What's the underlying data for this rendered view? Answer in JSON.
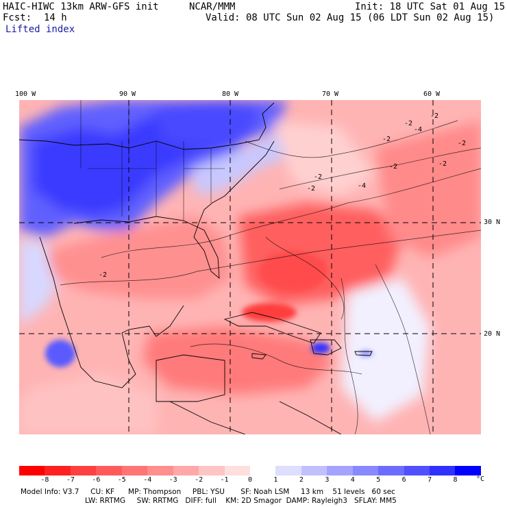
{
  "header": {
    "model": "HAIC-HIWC 13km ARW-GFS init",
    "org": "NCAR/MMM",
    "init": "Init: 18 UTC Sat 01 Aug 15",
    "fcst_label": "Fcst:",
    "fcst_value": "14 h",
    "valid": "Valid: 08 UTC Sun 02 Aug 15 (06 LDT Sun 02 Aug 15)",
    "field": "Lifted index"
  },
  "axes": {
    "lon_labels": [
      "100 W",
      "90 W",
      "80 W",
      "70 W",
      "60 W"
    ],
    "lat_labels": [
      "30 N",
      "20 N"
    ]
  },
  "colorbar": {
    "ticks": [
      "-8",
      "-7",
      "-6",
      "-5",
      "-4",
      "-3",
      "-2",
      "-1",
      "0",
      "1",
      "2",
      "3",
      "4",
      "5",
      "6",
      "7",
      "8"
    ],
    "unit": "°C",
    "colors": [
      "#ff0000",
      "#ff2020",
      "#ff4040",
      "#ff5a5a",
      "#ff7474",
      "#ff8e8e",
      "#ffa8a8",
      "#ffc4c4",
      "#ffdede",
      "#ffffff",
      "#dedeff",
      "#c0c0ff",
      "#a4a4ff",
      "#8888ff",
      "#6c6cff",
      "#5050ff",
      "#3030ff",
      "#0000ff"
    ]
  },
  "map_contour_labels": [
    "-2",
    "-2",
    "-4",
    "-2",
    "-2",
    "-2",
    "-2",
    "-4",
    "-2",
    "-2",
    "-2"
  ],
  "footer": {
    "line1": "Model Info: V3.7     CU: KF      MP: Thompson     PBL: YSU       SF: Noah LSM     13 km    51 levels   60 sec",
    "line2": "LW: RRTMG     SW: RRTMG   DIFF: full    KM: 2D Smagor  DAMP: Rayleigh3   SFLAY: MM5"
  }
}
